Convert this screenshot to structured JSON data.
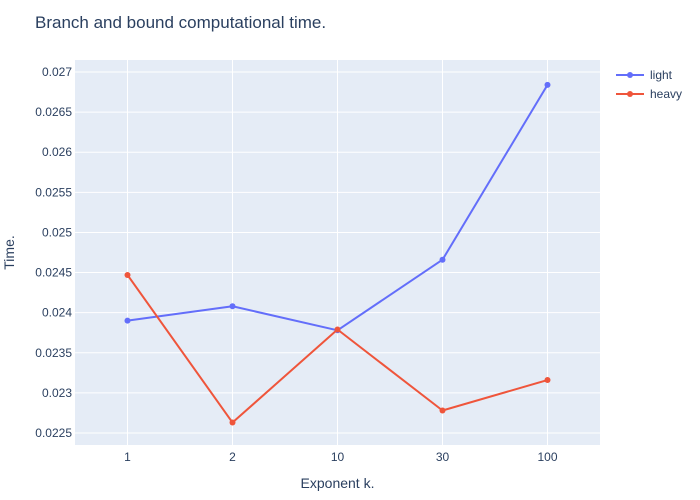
{
  "chart_data": {
    "type": "line",
    "title": "Branch and bound computational time.",
    "xlabel": "Exponent k.",
    "ylabel": "Time.",
    "categories": [
      "1",
      "2",
      "10",
      "30",
      "100"
    ],
    "ylim": [
      0.02235,
      0.02715
    ],
    "yticks": [
      0.0225,
      0.023,
      0.0235,
      0.024,
      0.0245,
      0.025,
      0.0255,
      0.026,
      0.0265,
      0.027
    ],
    "grid": true,
    "legend_position": "top-right",
    "plot_background": "#e5ecf6",
    "series": [
      {
        "name": "light",
        "color": "#636efa",
        "values": [
          0.0239,
          0.02408,
          0.02378,
          0.02466,
          0.02684
        ]
      },
      {
        "name": "heavy",
        "color": "#ef553b",
        "values": [
          0.02447,
          0.02263,
          0.02379,
          0.02278,
          0.02316
        ]
      }
    ]
  }
}
